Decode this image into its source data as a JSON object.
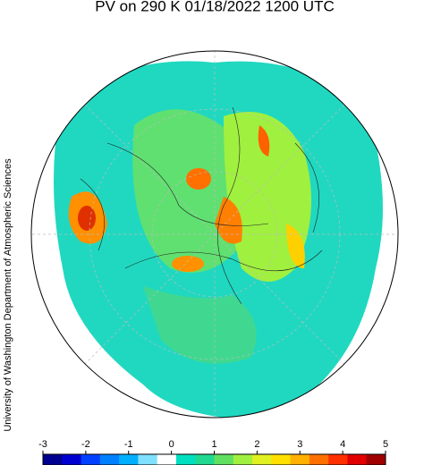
{
  "title": "PV on 290 K 01/18/2022 1200 UTC",
  "credit": "University of Washington Department of Atmospheric Sciences",
  "colorbar": {
    "min": -3,
    "max": 5,
    "ticks": [
      -3,
      -2,
      -1,
      0,
      1,
      2,
      3,
      4,
      5
    ],
    "colors": [
      "#00008f",
      "#0000d0",
      "#0040ff",
      "#0080ff",
      "#00b0ff",
      "#80e0ff",
      "#ffffff",
      "#00e0c0",
      "#20d890",
      "#60e060",
      "#a0f040",
      "#e0f020",
      "#ffe000",
      "#ffb000",
      "#ff7000",
      "#ff3000",
      "#e00000",
      "#a00000"
    ]
  }
}
